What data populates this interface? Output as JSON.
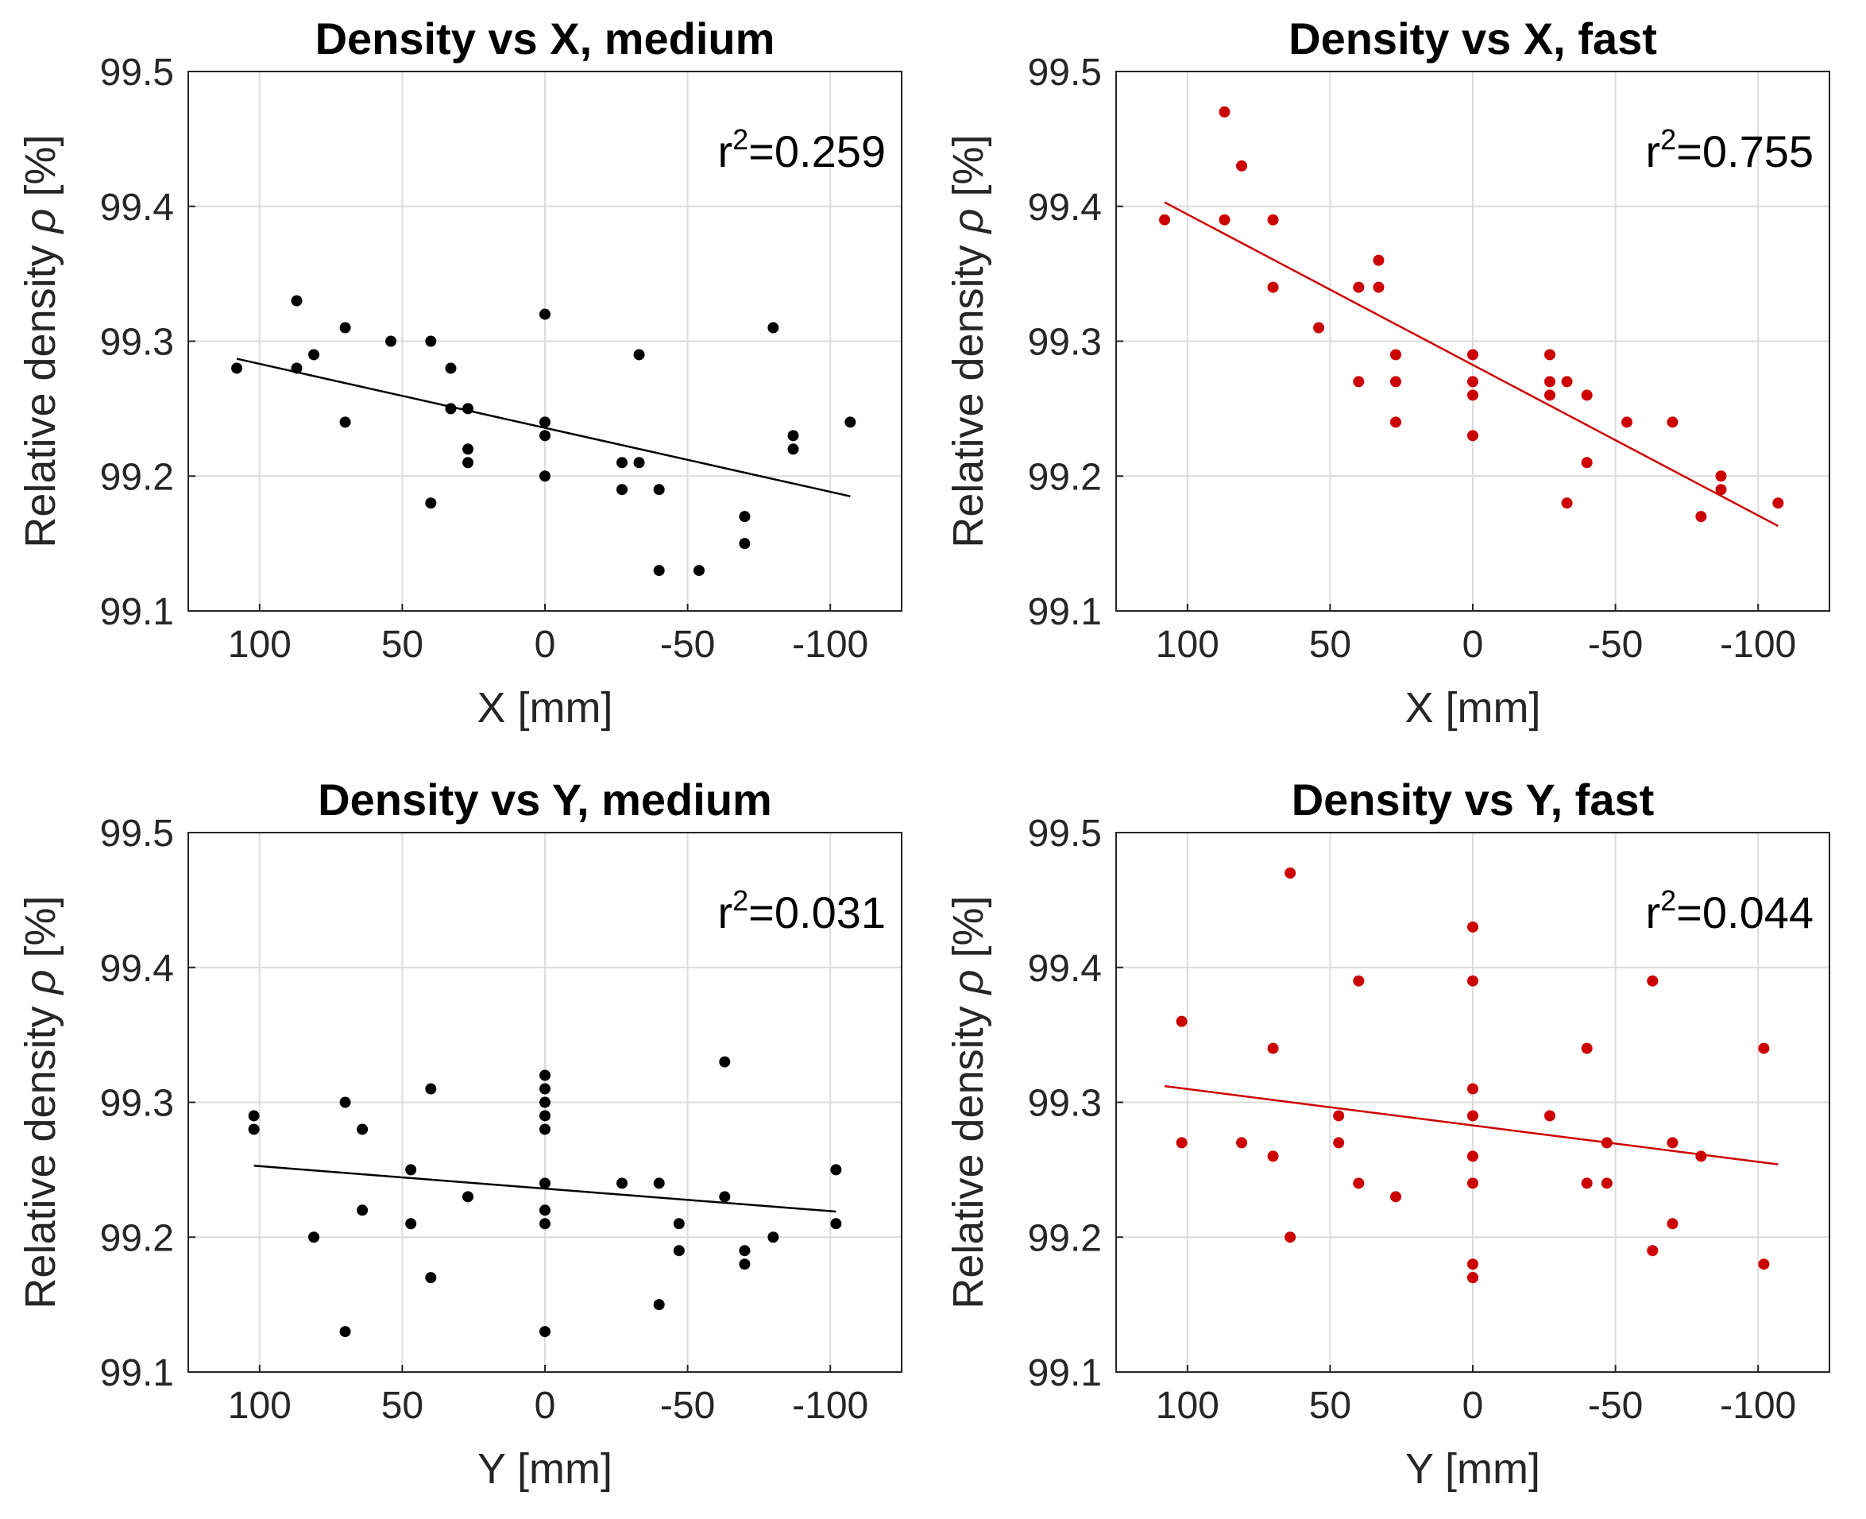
{
  "colors": {
    "black_series": "#000000",
    "red_series": "#cc0000"
  },
  "chart_data": [
    {
      "type": "scatter",
      "title": "Density vs X, medium",
      "xlabel": "X [mm]",
      "ylabel_main": "Relative density ",
      "ylabel_symbol": "ρ",
      "ylabel_unit": " [%]",
      "xlim": [
        125,
        -125
      ],
      "ylim": [
        99.1,
        99.5
      ],
      "xticks": [
        100,
        50,
        0,
        -50,
        -100
      ],
      "xtick_labels": [
        "100",
        "50",
        "0",
        "-50",
        "-100"
      ],
      "yticks": [
        99.1,
        99.2,
        99.3,
        99.4,
        99.5
      ],
      "ytick_labels": [
        "99.1",
        "99.2",
        "99.3",
        "99.4",
        "99.5"
      ],
      "grid": true,
      "color": "#000000",
      "annotation": {
        "base": "r",
        "sup": "2",
        "rest": "=0.259"
      },
      "x": [
        108,
        87,
        87,
        81,
        70,
        70,
        54,
        40,
        40,
        33,
        33,
        27,
        27,
        27,
        0,
        0,
        0,
        0,
        -27,
        -27,
        -33,
        -33,
        -40,
        -40,
        -54,
        -70,
        -70,
        -80,
        -87,
        -87,
        -107
      ],
      "y": [
        99.28,
        99.33,
        99.28,
        99.29,
        99.31,
        99.24,
        99.3,
        99.3,
        99.18,
        99.28,
        99.25,
        99.25,
        99.22,
        99.21,
        99.32,
        99.24,
        99.23,
        99.2,
        99.21,
        99.19,
        99.29,
        99.21,
        99.19,
        99.13,
        99.13,
        99.17,
        99.15,
        99.31,
        99.23,
        99.22,
        99.24
      ],
      "fit": {
        "x": [
          108,
          -107
        ],
        "y": [
          99.287,
          99.185
        ]
      }
    },
    {
      "type": "scatter",
      "title": "Density vs X, fast",
      "xlabel": "X [mm]",
      "ylabel_main": "Relative density ",
      "ylabel_symbol": "ρ",
      "ylabel_unit": " [%]",
      "xlim": [
        125,
        -125
      ],
      "ylim": [
        99.1,
        99.5
      ],
      "xticks": [
        100,
        50,
        0,
        -50,
        -100
      ],
      "xtick_labels": [
        "100",
        "50",
        "0",
        "-50",
        "-100"
      ],
      "yticks": [
        99.1,
        99.2,
        99.3,
        99.4,
        99.5
      ],
      "ytick_labels": [
        "99.1",
        "99.2",
        "99.3",
        "99.4",
        "99.5"
      ],
      "grid": true,
      "color": "#cc0000",
      "annotation": {
        "base": "r",
        "sup": "2",
        "rest": "=0.755"
      },
      "x": [
        108,
        87,
        87,
        81,
        70,
        70,
        54,
        40,
        40,
        33,
        33,
        27,
        27,
        27,
        0,
        0,
        0,
        0,
        -27,
        -27,
        -27,
        -33,
        -33,
        -40,
        -40,
        -54,
        -70,
        -80,
        -87,
        -87,
        -107
      ],
      "y": [
        99.39,
        99.47,
        99.39,
        99.43,
        99.39,
        99.34,
        99.31,
        99.34,
        99.27,
        99.36,
        99.34,
        99.29,
        99.27,
        99.24,
        99.29,
        99.27,
        99.26,
        99.23,
        99.29,
        99.27,
        99.26,
        99.27,
        99.18,
        99.26,
        99.21,
        99.24,
        99.24,
        99.17,
        99.2,
        99.19,
        99.18
      ],
      "fit": {
        "x": [
          108,
          -107
        ],
        "y": [
          99.403,
          99.163
        ]
      }
    },
    {
      "type": "scatter",
      "title": "Density vs Y, medium",
      "xlabel": "Y [mm]",
      "ylabel_main": "Relative density ",
      "ylabel_symbol": "ρ",
      "ylabel_unit": " [%]",
      "xlim": [
        125,
        -125
      ],
      "ylim": [
        99.1,
        99.5
      ],
      "xticks": [
        100,
        50,
        0,
        -50,
        -100
      ],
      "xtick_labels": [
        "100",
        "50",
        "0",
        "-50",
        "-100"
      ],
      "yticks": [
        99.1,
        99.2,
        99.3,
        99.4,
        99.5
      ],
      "ytick_labels": [
        "99.1",
        "99.2",
        "99.3",
        "99.4",
        "99.5"
      ],
      "grid": true,
      "color": "#000000",
      "annotation": {
        "base": "r",
        "sup": "2",
        "rest": "=0.031"
      },
      "x": [
        102,
        102,
        81,
        70,
        70,
        64,
        64,
        47,
        47,
        40,
        40,
        27,
        0,
        0,
        0,
        0,
        0,
        0,
        0,
        0,
        0,
        -27,
        -40,
        -40,
        -47,
        -47,
        -63,
        -63,
        -70,
        -70,
        -80,
        -102,
        -102
      ],
      "y": [
        99.29,
        99.28,
        99.2,
        99.3,
        99.13,
        99.28,
        99.22,
        99.25,
        99.21,
        99.31,
        99.17,
        99.23,
        99.32,
        99.31,
        99.3,
        99.29,
        99.28,
        99.24,
        99.22,
        99.21,
        99.13,
        99.24,
        99.24,
        99.15,
        99.21,
        99.19,
        99.33,
        99.23,
        99.19,
        99.18,
        99.2,
        99.25,
        99.21
      ],
      "fit": {
        "x": [
          102,
          -102
        ],
        "y": [
          99.253,
          99.219
        ]
      }
    },
    {
      "type": "scatter",
      "title": "Density vs Y, fast",
      "xlabel": "Y [mm]",
      "ylabel_main": "Relative density ",
      "ylabel_symbol": "ρ",
      "ylabel_unit": " [%]",
      "xlim": [
        125,
        -125
      ],
      "ylim": [
        99.1,
        99.5
      ],
      "xticks": [
        100,
        50,
        0,
        -50,
        -100
      ],
      "xtick_labels": [
        "100",
        "50",
        "0",
        "-50",
        "-100"
      ],
      "yticks": [
        99.1,
        99.2,
        99.3,
        99.4,
        99.5
      ],
      "ytick_labels": [
        "99.1",
        "99.2",
        "99.3",
        "99.4",
        "99.5"
      ],
      "grid": true,
      "color": "#cc0000",
      "annotation": {
        "base": "r",
        "sup": "2",
        "rest": "=0.044"
      },
      "x": [
        102,
        102,
        81,
        70,
        70,
        64,
        64,
        47,
        47,
        40,
        40,
        27,
        0,
        0,
        0,
        0,
        0,
        0,
        0,
        0,
        0,
        -27,
        -40,
        -40,
        -47,
        -47,
        -63,
        -63,
        -70,
        -70,
        -80,
        -102,
        -102
      ],
      "y": [
        99.36,
        99.27,
        99.27,
        99.34,
        99.26,
        99.47,
        99.2,
        99.29,
        99.27,
        99.39,
        99.24,
        99.23,
        99.43,
        99.39,
        99.31,
        99.29,
        99.26,
        99.24,
        99.18,
        99.17,
        99.17,
        99.29,
        99.34,
        99.24,
        99.27,
        99.24,
        99.39,
        99.19,
        99.27,
        99.21,
        99.26,
        99.34,
        99.18
      ],
      "fit": {
        "x": [
          108,
          -107
        ],
        "y": [
          99.312,
          99.254
        ]
      }
    }
  ]
}
